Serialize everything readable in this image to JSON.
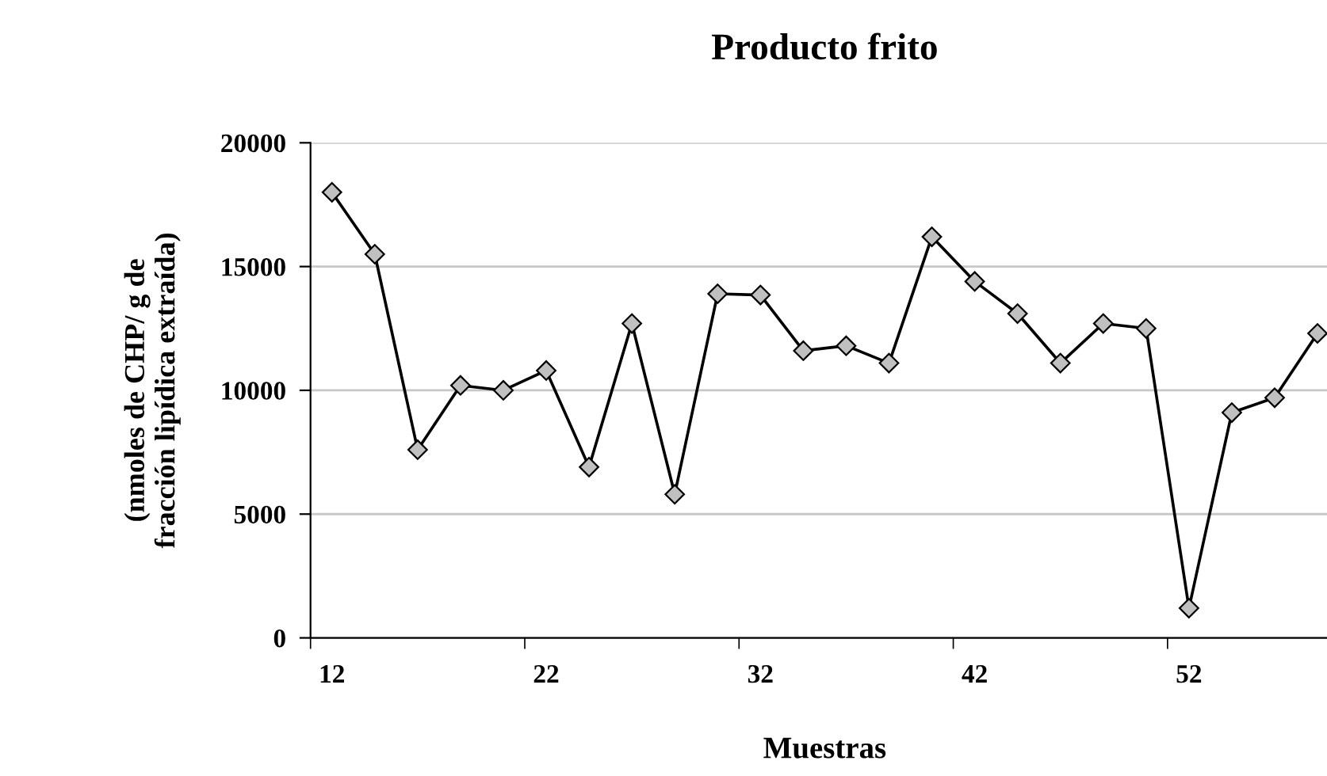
{
  "chart_data": {
    "type": "line",
    "title": "Producto frito",
    "xlabel": "Muestras",
    "ylabel": "(nmoles de CHP/ g de\nfracción lipídica extraída)",
    "categories": [
      "12",
      null,
      null,
      null,
      null,
      "22",
      null,
      null,
      null,
      null,
      "32",
      null,
      null,
      null,
      null,
      "42",
      null,
      null,
      null,
      null,
      "52",
      null,
      null,
      null
    ],
    "series": [
      {
        "color": "#000000",
        "values": [
          18000,
          15500,
          7600,
          10200,
          10000,
          10800,
          6900,
          12700,
          5800,
          13900,
          13850,
          11600,
          11800,
          11100,
          16200,
          14400,
          13100,
          11100,
          12700,
          12500,
          1200,
          9100,
          9700,
          12300
        ]
      }
    ],
    "ylim": [
      0,
      20000
    ],
    "yticks": [
      0,
      5000,
      10000,
      15000,
      20000
    ],
    "grid": "y",
    "marker": "diamond",
    "line_style": "solid",
    "legend": false
  }
}
